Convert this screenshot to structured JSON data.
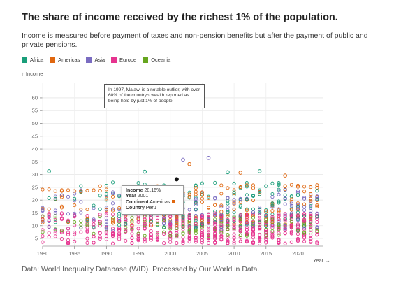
{
  "title": "The share of income received by the richest 1% of the population.",
  "subtitle": "Income is measured before payment of taxes and non-pension benefits but after the payment of public and private pensions.",
  "legend": [
    {
      "label": "Africa",
      "color": "#1a9e7a"
    },
    {
      "label": "Americas",
      "color": "#e0670f"
    },
    {
      "label": "Asia",
      "color": "#7a6cc1"
    },
    {
      "label": "Europe",
      "color": "#e6338f"
    },
    {
      "label": "Oceania",
      "color": "#66a61e"
    }
  ],
  "y_axis_title": "↑ Income",
  "x_axis_title": "Year →",
  "annotation": "In 1997, Malawi is a notable outlier, with over 60% of the country's wealth reported as being held by just 1% of people.",
  "tooltip": {
    "income_label": "Income",
    "income_value": "28.16%",
    "year_label": "Year",
    "year_value": "2001",
    "continent_label": "Continent",
    "continent_value": "Americas",
    "country_label": "Country",
    "country_value": "Peru"
  },
  "footer": "Data: World Inequality Database (WID). Processed by Our World in Data.",
  "chart_data": {
    "type": "scatter",
    "x_ticks": [
      1980,
      1985,
      1990,
      1995,
      2000,
      2005,
      2010,
      2015,
      2020
    ],
    "y_ticks": [
      5,
      10,
      15,
      20,
      25,
      30,
      35,
      40,
      45,
      50,
      55,
      60
    ],
    "xlim": [
      1980,
      2024
    ],
    "ylim": [
      2,
      66
    ],
    "grid": true,
    "legend_position": "top-left",
    "highlight": {
      "x": 2001,
      "y": 28.16,
      "continent": "Americas",
      "country": "Peru"
    },
    "outliers": [
      {
        "x": 1997,
        "y": 63.2,
        "continent": "Africa"
      },
      {
        "x": 2006,
        "y": 36.5,
        "continent": "Asia"
      },
      {
        "x": 2002,
        "y": 35.8,
        "continent": "Asia"
      },
      {
        "x": 2003,
        "y": 34.1,
        "continent": "Americas"
      },
      {
        "x": 1981,
        "y": 31.3,
        "continent": "Africa"
      },
      {
        "x": 1996,
        "y": 31.1,
        "continent": "Africa"
      },
      {
        "x": 2014,
        "y": 31.3,
        "continent": "Africa"
      },
      {
        "x": 2009,
        "y": 30.9,
        "continent": "Africa"
      },
      {
        "x": 2011,
        "y": 30.7,
        "continent": "Americas"
      },
      {
        "x": 2018,
        "y": 29.6,
        "continent": "Americas"
      }
    ],
    "series": [
      {
        "name": "Africa"
      },
      {
        "name": "Americas"
      },
      {
        "name": "Asia"
      },
      {
        "name": "Europe"
      },
      {
        "name": "Oceania"
      }
    ]
  }
}
